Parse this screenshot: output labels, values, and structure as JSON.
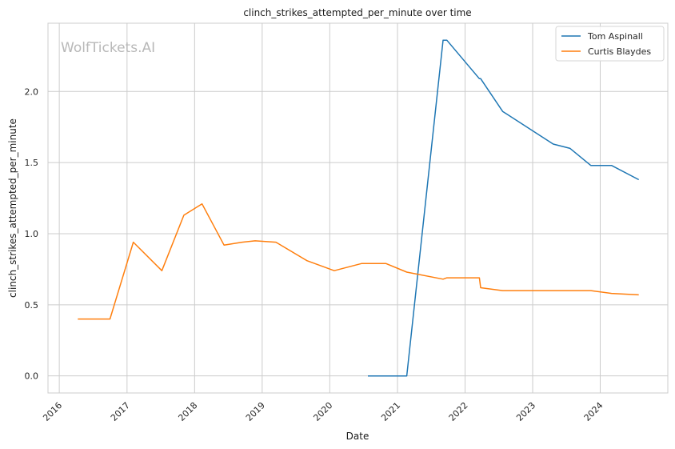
{
  "chart_data": {
    "type": "line",
    "title": "clinch_strikes_attempted_per_minute over time",
    "xlabel": "Date",
    "ylabel": "clinch_strikes_attempted_per_minute",
    "watermark": "WolfTickets.AI",
    "xlim": [
      "2015-11-01",
      "2024-12-31"
    ],
    "ylim": [
      -0.12,
      2.48
    ],
    "x_ticks": [
      "2016",
      "2017",
      "2018",
      "2019",
      "2020",
      "2021",
      "2022",
      "2023",
      "2024"
    ],
    "y_ticks": [
      "0.0",
      "0.5",
      "1.0",
      "1.5",
      "2.0"
    ],
    "grid": true,
    "legend_position": "top-right",
    "series": [
      {
        "name": "Tom Aspinall",
        "color": "#1f77b4",
        "points": [
          [
            "2020-07-25",
            0.0
          ],
          [
            "2021-02-20",
            0.0
          ],
          [
            "2021-09-04",
            2.36
          ],
          [
            "2021-09-25",
            2.36
          ],
          [
            "2022-03-19",
            2.09
          ],
          [
            "2022-03-26",
            2.09
          ],
          [
            "2022-07-23",
            1.86
          ],
          [
            "2023-04-22",
            1.63
          ],
          [
            "2023-07-22",
            1.6
          ],
          [
            "2023-11-11",
            1.48
          ],
          [
            "2024-03-02",
            1.48
          ],
          [
            "2024-07-27",
            1.38
          ]
        ]
      },
      {
        "name": "Curtis Blaydes",
        "color": "#ff7f0e",
        "points": [
          [
            "2016-04-10",
            0.4
          ],
          [
            "2016-10-01",
            0.4
          ],
          [
            "2017-02-04",
            0.94
          ],
          [
            "2017-07-08",
            0.74
          ],
          [
            "2017-11-04",
            1.13
          ],
          [
            "2018-02-10",
            1.21
          ],
          [
            "2018-06-09",
            0.92
          ],
          [
            "2018-09-15",
            0.94
          ],
          [
            "2018-11-24",
            0.95
          ],
          [
            "2019-03-16",
            0.94
          ],
          [
            "2019-08-31",
            0.81
          ],
          [
            "2020-01-25",
            0.74
          ],
          [
            "2020-06-20",
            0.79
          ],
          [
            "2020-10-31",
            0.79
          ],
          [
            "2021-02-20",
            0.73
          ],
          [
            "2021-09-04",
            0.68
          ],
          [
            "2021-09-25",
            0.69
          ],
          [
            "2022-03-19",
            0.69
          ],
          [
            "2022-03-26",
            0.62
          ],
          [
            "2022-07-23",
            0.6
          ],
          [
            "2023-04-22",
            0.6
          ],
          [
            "2023-07-22",
            0.6
          ],
          [
            "2023-11-11",
            0.6
          ],
          [
            "2024-03-02",
            0.58
          ],
          [
            "2024-07-27",
            0.57
          ]
        ]
      }
    ]
  }
}
